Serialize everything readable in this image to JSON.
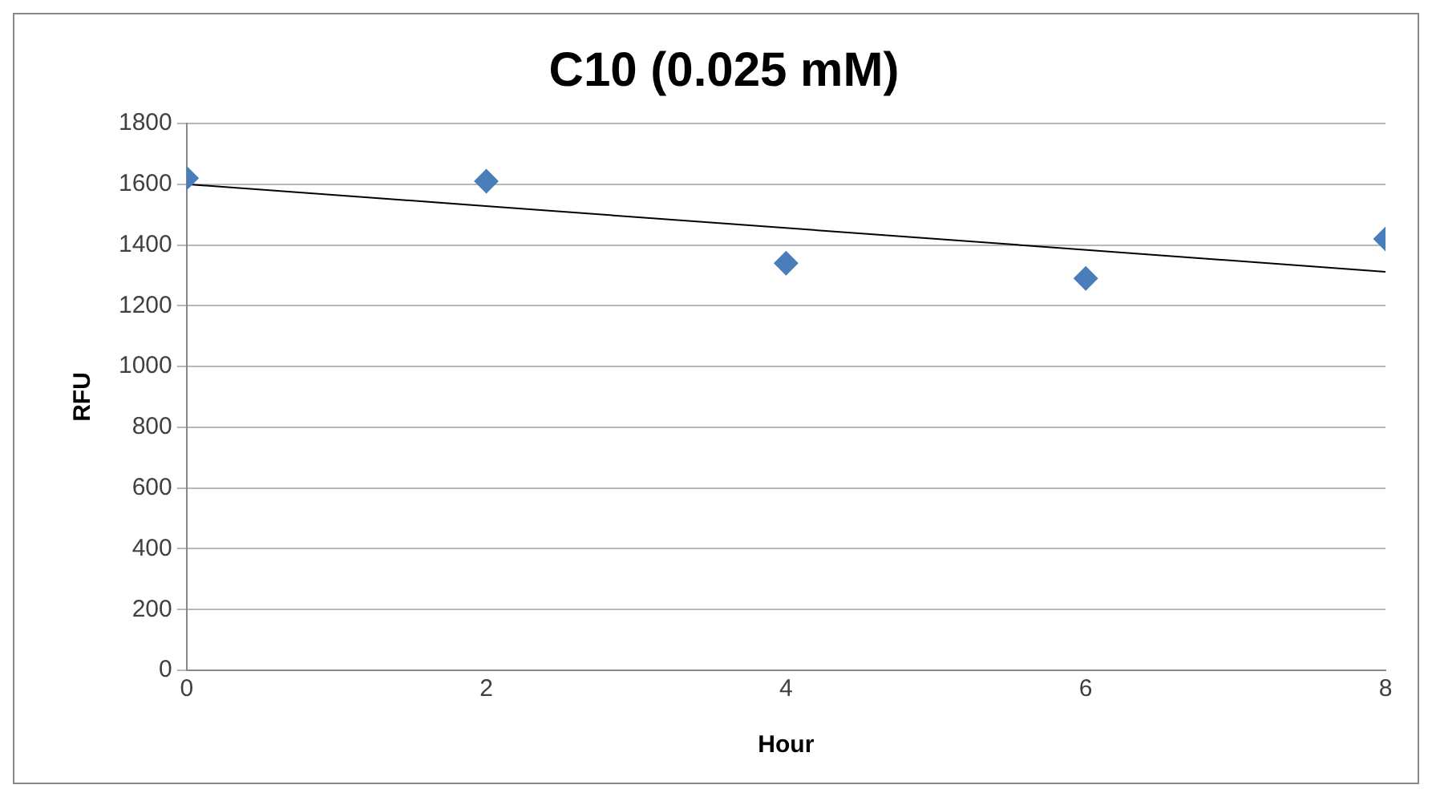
{
  "chart_data": {
    "type": "scatter",
    "title": "C10 (0.025 mM)",
    "xlabel": "Hour",
    "ylabel": "RFU",
    "x": [
      0,
      2,
      4,
      6,
      8
    ],
    "series": [
      {
        "color": "#4a7ebb",
        "marker": "diamond",
        "values": [
          1620,
          1610,
          1340,
          1290,
          1420
        ]
      },
      {
        "type": "line",
        "color": "#000000",
        "marker": "none",
        "line_style": "solid",
        "x": [
          0,
          8
        ],
        "values": [
          1600,
          1312
        ]
      }
    ],
    "xlim": [
      0,
      8
    ],
    "xticks": [
      0,
      2,
      4,
      6,
      8
    ],
    "ylim": [
      0,
      1800
    ],
    "yticks": [
      0,
      200,
      400,
      600,
      800,
      1000,
      1200,
      1400,
      1600,
      1800
    ],
    "grid": "y",
    "legend": false
  }
}
